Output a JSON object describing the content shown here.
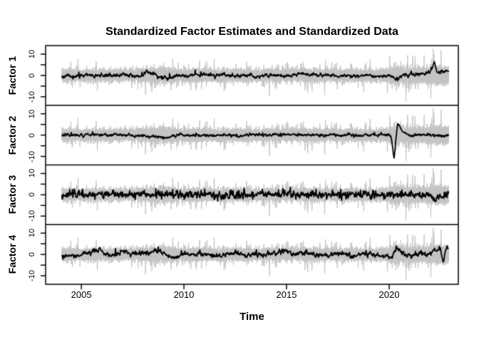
{
  "chart_data": {
    "type": "line",
    "title": "Standardized Factor Estimates and Standardized Data",
    "xlabel": "Time",
    "xticks": [
      2005,
      2010,
      2015,
      2020
    ],
    "x_axis_range": [
      2003.26,
      2023.37
    ],
    "data_x_range": [
      2004.05,
      2022.9
    ],
    "samples_per_year": 52,
    "grid": false,
    "legend": "none",
    "estimate_color": "#000000",
    "axis_color": "#000000",
    "data_series": {
      "description": "standardized data (same gray backdrop in every panel)",
      "count": 24,
      "color": "#c3c3c3",
      "base_sd": 1.25,
      "tail_prob": 0.022,
      "tail_scale": 2.7,
      "seed": 7,
      "amplitude_anchors": [
        [
          2004.05,
          1.0
        ],
        [
          2007.7,
          1.0
        ],
        [
          2008.6,
          1.3
        ],
        [
          2009.6,
          1.05
        ],
        [
          2019.8,
          1.0
        ],
        [
          2020.3,
          1.5
        ],
        [
          2021.0,
          1.3
        ],
        [
          2021.9,
          1.45
        ],
        [
          2022.9,
          1.6
        ]
      ]
    },
    "panels": [
      {
        "label": "Factor 1",
        "yticks": [
          10,
          0,
          -10
        ],
        "minor_yticks": [
          5,
          -5
        ],
        "ylim": [
          -14,
          14
        ],
        "seed": 11,
        "noise_sd": 0.35,
        "noise_ar": 0.55,
        "spike_prob": 0.012,
        "spike_amp": 1.0,
        "estimate_anchors": [
          [
            2004.05,
            -0.3
          ],
          [
            2005,
            0
          ],
          [
            2006,
            -0.2
          ],
          [
            2007,
            0.2
          ],
          [
            2007.8,
            -0.3
          ],
          [
            2008.2,
            1.6
          ],
          [
            2008.5,
            0.5
          ],
          [
            2009.0,
            -1.0
          ],
          [
            2009.3,
            -1.4
          ],
          [
            2009.8,
            0
          ],
          [
            2010.5,
            0.3
          ],
          [
            2011,
            0.5
          ],
          [
            2011.5,
            -0.3
          ],
          [
            2012,
            0.4
          ],
          [
            2012.5,
            -0.6
          ],
          [
            2013,
            0.2
          ],
          [
            2013.6,
            -0.4
          ],
          [
            2014,
            0
          ],
          [
            2015,
            -0.2
          ],
          [
            2015.8,
            0.8
          ],
          [
            2016.2,
            0.3
          ],
          [
            2017,
            0.2
          ],
          [
            2017.5,
            -0.2
          ],
          [
            2018,
            0.3
          ],
          [
            2018.5,
            -0.3
          ],
          [
            2019,
            0.2
          ],
          [
            2019.5,
            -0.4
          ],
          [
            2020.0,
            -0.3
          ],
          [
            2020.3,
            -1.8
          ],
          [
            2020.7,
            0.3
          ],
          [
            2021.0,
            0
          ],
          [
            2021.5,
            0.8
          ],
          [
            2021.9,
            1.2
          ],
          [
            2022.05,
            1.9
          ],
          [
            2022.2,
            6.8
          ],
          [
            2022.35,
            1.1
          ],
          [
            2022.6,
            1.9
          ],
          [
            2022.9,
            1.4
          ]
        ]
      },
      {
        "label": "Factor 2",
        "yticks": [
          10,
          0,
          -10
        ],
        "minor_yticks": [
          5,
          -5
        ],
        "ylim": [
          -14,
          14
        ],
        "seed": 22,
        "noise_sd": 0.3,
        "noise_ar": 0.5,
        "spike_prob": 0.015,
        "spike_amp": 0.9,
        "estimate_anchors": [
          [
            2004.05,
            0
          ],
          [
            2006,
            0.1
          ],
          [
            2008,
            -0.2
          ],
          [
            2009.2,
            -1.2
          ],
          [
            2009.5,
            0
          ],
          [
            2012,
            0
          ],
          [
            2015,
            0.1
          ],
          [
            2018,
            0
          ],
          [
            2019.8,
            0.2
          ],
          [
            2020.1,
            -0.5
          ],
          [
            2020.24,
            -11
          ],
          [
            2020.33,
            -2
          ],
          [
            2020.42,
            5.6
          ],
          [
            2020.6,
            2.2
          ],
          [
            2020.8,
            0.8
          ],
          [
            2021.1,
            -0.4
          ],
          [
            2021.4,
            0.2
          ],
          [
            2022,
            0
          ],
          [
            2022.9,
            -0.2
          ]
        ]
      },
      {
        "label": "Factor 3",
        "yticks": [
          10,
          0,
          -10
        ],
        "minor_yticks": [
          5,
          -5
        ],
        "ylim": [
          -14,
          14
        ],
        "seed": 33,
        "noise_sd": 0.75,
        "noise_ar": 0.35,
        "spike_prob": 0.09,
        "spike_amp": 1.6,
        "estimate_anchors": [
          [
            2004.05,
            0
          ],
          [
            2008,
            0.1
          ],
          [
            2010,
            0
          ],
          [
            2013,
            0.1
          ],
          [
            2016,
            0
          ],
          [
            2019,
            0.1
          ],
          [
            2020.5,
            0
          ],
          [
            2021.5,
            0.3
          ],
          [
            2021.9,
            -0.5
          ],
          [
            2022.1,
            -1.2
          ],
          [
            2022.25,
            -2.4
          ],
          [
            2022.5,
            -1.6
          ],
          [
            2022.7,
            -0.5
          ],
          [
            2022.9,
            0.6
          ]
        ]
      },
      {
        "label": "Factor 4",
        "yticks": [
          10,
          0,
          -10
        ],
        "minor_yticks": [
          5,
          -5
        ],
        "ylim": [
          -14,
          14
        ],
        "seed": 44,
        "noise_sd": 0.5,
        "noise_ar": 0.5,
        "spike_prob": 0.02,
        "spike_amp": 1.1,
        "estimate_anchors": [
          [
            2004.05,
            -0.5
          ],
          [
            2004.5,
            -0.8
          ],
          [
            2005.2,
            0.3
          ],
          [
            2005.9,
            2.2
          ],
          [
            2006.1,
            0.3
          ],
          [
            2006.5,
            -0.8
          ],
          [
            2007,
            1.2
          ],
          [
            2007.3,
            0.4
          ],
          [
            2008,
            0.6
          ],
          [
            2008.8,
            2.3
          ],
          [
            2009.1,
            0.8
          ],
          [
            2009.4,
            -1.5
          ],
          [
            2009.7,
            -1.0
          ],
          [
            2010.2,
            0.3
          ],
          [
            2011,
            0.4
          ],
          [
            2011.8,
            -0.8
          ],
          [
            2012.5,
            0.8
          ],
          [
            2013,
            -0.8
          ],
          [
            2013.5,
            0.6
          ],
          [
            2014,
            -0.3
          ],
          [
            2014.9,
            1.8
          ],
          [
            2015.3,
            0
          ],
          [
            2016,
            0.5
          ],
          [
            2016.8,
            -0.5
          ],
          [
            2017.5,
            0.5
          ],
          [
            2018.2,
            -0.5
          ],
          [
            2019,
            0.8
          ],
          [
            2019.5,
            -0.8
          ],
          [
            2020.1,
            -1.2
          ],
          [
            2020.35,
            2.8
          ],
          [
            2020.6,
            0.5
          ],
          [
            2021,
            -0.5
          ],
          [
            2021.5,
            0.5
          ],
          [
            2021.9,
            -0.3
          ],
          [
            2022.1,
            1.5
          ],
          [
            2022.3,
            1.6
          ],
          [
            2022.5,
            2.3
          ],
          [
            2022.62,
            -3.9
          ],
          [
            2022.82,
            4.3
          ],
          [
            2022.9,
            3.0
          ]
        ]
      }
    ]
  }
}
